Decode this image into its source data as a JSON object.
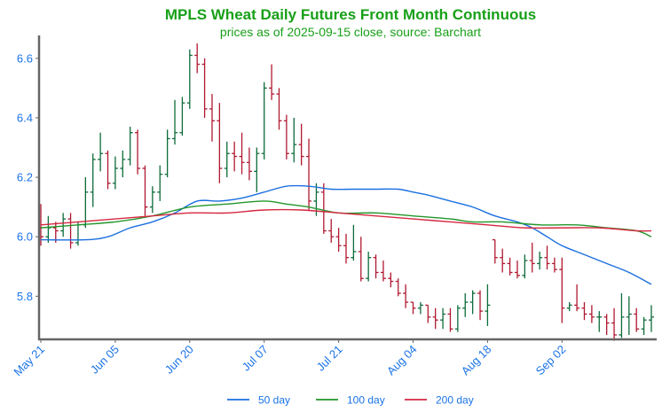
{
  "chart_data": {
    "type": "ohlc",
    "title": "MPLS Wheat Daily Futures Front Month Continuous",
    "subtitle": "prices as of 2025-09-15 close, source: Barchart",
    "xlabel": "",
    "ylabel": "",
    "ylim": [
      5.655,
      6.665
    ],
    "y_ticks": [
      "5.8",
      "6.0",
      "6.2",
      "6.4",
      "6.6"
    ],
    "x_ticks": [
      {
        "label": "May 21",
        "index": 0
      },
      {
        "label": "Jun 05",
        "index": 10
      },
      {
        "label": "Jun 20",
        "index": 20
      },
      {
        "label": "Jul 07",
        "index": 30
      },
      {
        "label": "Jul 21",
        "index": 40
      },
      {
        "label": "Aug 04",
        "index": 50
      },
      {
        "label": "Aug 18",
        "index": 60
      },
      {
        "label": "Sep 02",
        "index": 70
      }
    ],
    "colors": {
      "title": "#18a018",
      "tick": "#1a73e8",
      "up": "#0d6b3a",
      "down": "#b01830",
      "ma50": "#1a6fe0",
      "ma100": "#22962a",
      "ma200": "#d42840",
      "axis": "#666666"
    },
    "legend": {
      "placement": "bottom-center",
      "entries": [
        {
          "label": "50 day",
          "color": "#1a6fe0"
        },
        {
          "label": "100 day",
          "color": "#22962a"
        },
        {
          "label": "200 day",
          "color": "#d42840"
        }
      ]
    },
    "ohlc": [
      [
        6.03,
        6.11,
        5.97,
        6.0
      ],
      [
        6.0,
        6.07,
        5.98,
        6.03
      ],
      [
        6.03,
        6.05,
        5.98,
        6.02
      ],
      [
        6.02,
        6.08,
        6.0,
        6.06
      ],
      [
        6.06,
        6.08,
        5.96,
        5.98
      ],
      [
        5.98,
        6.05,
        5.97,
        6.04
      ],
      [
        6.04,
        6.2,
        6.03,
        6.15
      ],
      [
        6.15,
        6.28,
        6.1,
        6.26
      ],
      [
        6.26,
        6.35,
        6.22,
        6.28
      ],
      [
        6.28,
        6.29,
        6.16,
        6.18
      ],
      [
        6.18,
        6.27,
        6.16,
        6.23
      ],
      [
        6.23,
        6.29,
        6.2,
        6.26
      ],
      [
        6.26,
        6.37,
        6.24,
        6.35
      ],
      [
        6.35,
        6.36,
        6.21,
        6.23
      ],
      [
        6.23,
        6.24,
        6.07,
        6.1
      ],
      [
        6.1,
        6.17,
        6.08,
        6.15
      ],
      [
        6.15,
        6.24,
        6.12,
        6.21
      ],
      [
        6.21,
        6.36,
        6.2,
        6.33
      ],
      [
        6.33,
        6.46,
        6.31,
        6.35
      ],
      [
        6.35,
        6.47,
        6.34,
        6.45
      ],
      [
        6.45,
        6.63,
        6.43,
        6.61
      ],
      [
        6.61,
        6.65,
        6.55,
        6.58
      ],
      [
        6.58,
        6.6,
        6.4,
        6.43
      ],
      [
        6.43,
        6.48,
        6.32,
        6.39
      ],
      [
        6.39,
        6.45,
        6.18,
        6.23
      ],
      [
        6.23,
        6.32,
        6.2,
        6.28
      ],
      [
        6.28,
        6.32,
        6.22,
        6.27
      ],
      [
        6.27,
        6.35,
        6.21,
        6.25
      ],
      [
        6.25,
        6.3,
        6.19,
        6.22
      ],
      [
        6.22,
        6.3,
        6.15,
        6.28
      ],
      [
        6.28,
        6.52,
        6.26,
        6.5
      ],
      [
        6.5,
        6.58,
        6.46,
        6.48
      ],
      [
        6.48,
        6.5,
        6.36,
        6.39
      ],
      [
        6.39,
        6.41,
        6.26,
        6.28
      ],
      [
        6.28,
        6.4,
        6.25,
        6.31
      ],
      [
        6.31,
        6.38,
        6.24,
        6.27
      ],
      [
        6.27,
        6.33,
        6.09,
        6.12
      ],
      [
        6.12,
        6.18,
        6.07,
        6.15
      ],
      [
        6.15,
        6.18,
        6.01,
        6.02
      ],
      [
        6.02,
        6.06,
        5.98,
        6.0
      ],
      [
        6.0,
        6.03,
        5.95,
        5.97
      ],
      [
        5.97,
        6.01,
        5.91,
        5.93
      ],
      [
        5.93,
        6.04,
        5.92,
        5.95
      ],
      [
        5.95,
        6.0,
        5.85,
        5.86
      ],
      [
        5.86,
        5.95,
        5.85,
        5.93
      ],
      [
        5.93,
        5.94,
        5.86,
        5.88
      ],
      [
        5.88,
        5.92,
        5.85,
        5.86
      ],
      [
        5.86,
        5.88,
        5.83,
        5.85
      ],
      [
        5.85,
        5.86,
        5.8,
        5.81
      ],
      [
        5.81,
        5.84,
        5.76,
        5.78
      ],
      [
        5.78,
        5.78,
        5.74,
        5.76
      ],
      [
        5.76,
        5.78,
        5.74,
        5.77
      ],
      [
        5.77,
        5.77,
        5.71,
        5.73
      ],
      [
        5.73,
        5.76,
        5.69,
        5.72
      ],
      [
        5.72,
        5.76,
        5.69,
        5.74
      ],
      [
        5.74,
        5.76,
        5.68,
        5.69
      ],
      [
        5.69,
        5.77,
        5.68,
        5.76
      ],
      [
        5.76,
        5.81,
        5.73,
        5.78
      ],
      [
        5.78,
        5.82,
        5.74,
        5.81
      ],
      [
        5.81,
        5.82,
        5.72,
        5.75
      ],
      [
        5.75,
        5.84,
        5.7,
        5.77
      ],
      [
        5.99,
        5.99,
        5.91,
        5.93
      ],
      [
        5.93,
        5.96,
        5.88,
        5.91
      ],
      [
        5.91,
        5.93,
        5.87,
        5.88
      ],
      [
        5.88,
        5.92,
        5.86,
        5.87
      ],
      [
        5.87,
        5.94,
        5.86,
        5.92
      ],
      [
        5.92,
        5.98,
        5.88,
        5.91
      ],
      [
        5.91,
        5.95,
        5.89,
        5.93
      ],
      [
        5.93,
        5.97,
        5.89,
        5.91
      ],
      [
        5.91,
        5.93,
        5.88,
        5.89
      ],
      [
        5.89,
        5.93,
        5.71,
        5.76
      ],
      [
        5.76,
        5.78,
        5.75,
        5.77
      ],
      [
        5.77,
        5.84,
        5.75,
        5.76
      ],
      [
        5.76,
        5.78,
        5.72,
        5.74
      ],
      [
        5.74,
        5.77,
        5.71,
        5.73
      ],
      [
        5.73,
        5.75,
        5.68,
        5.73
      ],
      [
        5.73,
        5.74,
        5.67,
        5.71
      ],
      [
        5.71,
        5.76,
        5.65,
        5.67
      ],
      [
        5.67,
        5.81,
        5.66,
        5.73
      ],
      [
        5.73,
        5.8,
        5.67,
        5.74
      ],
      [
        5.74,
        5.76,
        5.68,
        5.69
      ],
      [
        5.69,
        5.73,
        5.67,
        5.72
      ],
      [
        5.72,
        5.77,
        5.68,
        5.73
      ]
    ],
    "series": [
      {
        "name": "50 day",
        "color": "#1a6fe0",
        "points": [
          [
            0,
            5.99
          ],
          [
            6,
            5.99
          ],
          [
            9,
            6.0
          ],
          [
            12,
            6.03
          ],
          [
            15,
            6.05
          ],
          [
            18,
            6.08
          ],
          [
            21,
            6.12
          ],
          [
            24,
            6.12
          ],
          [
            27,
            6.13
          ],
          [
            30,
            6.15
          ],
          [
            33,
            6.17
          ],
          [
            36,
            6.17
          ],
          [
            39,
            6.16
          ],
          [
            42,
            6.16
          ],
          [
            45,
            6.16
          ],
          [
            48,
            6.16
          ],
          [
            50,
            6.15
          ],
          [
            52,
            6.14
          ],
          [
            55,
            6.12
          ],
          [
            58,
            6.1
          ],
          [
            61,
            6.07
          ],
          [
            64,
            6.05
          ],
          [
            66,
            6.03
          ],
          [
            68,
            6.0
          ],
          [
            70,
            5.97
          ],
          [
            73,
            5.94
          ],
          [
            76,
            5.91
          ],
          [
            79,
            5.88
          ],
          [
            82,
            5.84
          ]
        ]
      },
      {
        "name": "100 day",
        "color": "#22962a",
        "points": [
          [
            0,
            6.03
          ],
          [
            5,
            6.04
          ],
          [
            10,
            6.05
          ],
          [
            15,
            6.07
          ],
          [
            20,
            6.1
          ],
          [
            25,
            6.11
          ],
          [
            30,
            6.12
          ],
          [
            33,
            6.11
          ],
          [
            36,
            6.1
          ],
          [
            40,
            6.08
          ],
          [
            45,
            6.08
          ],
          [
            50,
            6.07
          ],
          [
            55,
            6.06
          ],
          [
            58,
            6.05
          ],
          [
            62,
            6.05
          ],
          [
            67,
            6.04
          ],
          [
            72,
            6.04
          ],
          [
            76,
            6.03
          ],
          [
            80,
            6.02
          ],
          [
            82,
            6.0
          ]
        ]
      },
      {
        "name": "200 day",
        "color": "#d42840",
        "points": [
          [
            0,
            6.04
          ],
          [
            5,
            6.05
          ],
          [
            10,
            6.06
          ],
          [
            15,
            6.07
          ],
          [
            20,
            6.08
          ],
          [
            25,
            6.08
          ],
          [
            30,
            6.09
          ],
          [
            35,
            6.09
          ],
          [
            40,
            6.08
          ],
          [
            45,
            6.07
          ],
          [
            50,
            6.06
          ],
          [
            55,
            6.05
          ],
          [
            60,
            6.04
          ],
          [
            65,
            6.03
          ],
          [
            70,
            6.03
          ],
          [
            75,
            6.03
          ],
          [
            80,
            6.02
          ],
          [
            82,
            6.02
          ]
        ]
      }
    ]
  }
}
